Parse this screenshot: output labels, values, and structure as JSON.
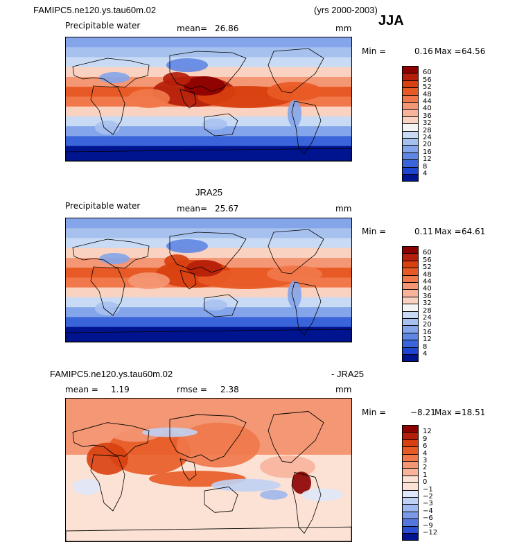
{
  "header": {
    "case_name": "FAMIPC5.ne120.ys.tau60m.02",
    "years": "(yrs 2000-2003)",
    "season": "JJA"
  },
  "panels": [
    {
      "id": "model",
      "title": "",
      "variable": "Precipitable water",
      "mean_label": "mean=",
      "mean_value": "26.86",
      "units": "mm",
      "min_label": "Min =",
      "min_value": "0.16",
      "max_label": "Max =",
      "max_value": "64.56"
    },
    {
      "id": "obs",
      "title": "JRA25",
      "variable": "Precipitable water",
      "mean_label": "mean=",
      "mean_value": "25.67",
      "units": "mm",
      "min_label": "Min =",
      "min_value": "0.11",
      "max_label": "Max =",
      "max_value": "64.61"
    },
    {
      "id": "diff",
      "title_left": "FAMIPC5.ne120.ys.tau60m.02",
      "title_right": "- JRA25",
      "mean_label": "mean =",
      "mean_value": "1.19",
      "rmse_label": "rmse =",
      "rmse_value": "2.38",
      "units": "mm",
      "min_label": "Min =",
      "min_value": "−8.21",
      "max_label": "Max =",
      "max_value": "18.51"
    }
  ],
  "chart_data": [
    {
      "type": "heatmap",
      "title": "FAMIPC5.ne120.ys.tau60m.02 Precipitable water JJA",
      "units": "mm",
      "mean": 26.86,
      "min": 0.16,
      "max": 64.56,
      "colorbar_levels": [
        4,
        8,
        12,
        16,
        20,
        24,
        28,
        32,
        36,
        40,
        44,
        48,
        52,
        56,
        60
      ],
      "colorbar_labels": [
        "60",
        "56",
        "52",
        "48",
        "44",
        "40",
        "36",
        "32",
        "28",
        "24",
        "20",
        "16",
        "12",
        "8",
        "4"
      ],
      "colors_high_to_low": [
        "#8b0000",
        "#b51e0a",
        "#d8400f",
        "#e85a25",
        "#f0784a",
        "#f49774",
        "#f7b49b",
        "#f9d2c1",
        "#f4f4f4",
        "#c9dbf4",
        "#a7c1ef",
        "#84a5ea",
        "#5f86e3",
        "#3a64da",
        "#1e44d2",
        "#00148f"
      ]
    },
    {
      "type": "heatmap",
      "title": "JRA25 Precipitable water",
      "units": "mm",
      "mean": 25.67,
      "min": 0.11,
      "max": 64.61,
      "colorbar_levels": [
        4,
        8,
        12,
        16,
        20,
        24,
        28,
        32,
        36,
        40,
        44,
        48,
        52,
        56,
        60
      ],
      "colorbar_labels": [
        "60",
        "56",
        "52",
        "48",
        "44",
        "40",
        "36",
        "32",
        "28",
        "24",
        "20",
        "16",
        "12",
        "8",
        "4"
      ],
      "colors_high_to_low": [
        "#8b0000",
        "#b51e0a",
        "#d8400f",
        "#e85a25",
        "#f0784a",
        "#f49774",
        "#f7b49b",
        "#f9d2c1",
        "#f4f4f4",
        "#c9dbf4",
        "#a7c1ef",
        "#84a5ea",
        "#5f86e3",
        "#3a64da",
        "#1e44d2",
        "#00148f"
      ]
    },
    {
      "type": "heatmap",
      "title": "FAMIPC5.ne120.ys.tau60m.02 - JRA25",
      "units": "mm",
      "mean": 1.19,
      "rmse": 2.38,
      "min": -8.21,
      "max": 18.51,
      "colorbar_levels": [
        -12,
        -9,
        -6,
        -4,
        -3,
        -2,
        -1,
        0,
        1,
        2,
        3,
        4,
        6,
        9,
        12
      ],
      "colorbar_labels": [
        "12",
        "9",
        "6",
        "4",
        "3",
        "2",
        "1",
        "0",
        "−1",
        "−2",
        "−3",
        "−4",
        "−6",
        "−9",
        "−12"
      ],
      "colors_high_to_low": [
        "#8b0000",
        "#b51e0a",
        "#d8400f",
        "#e85a25",
        "#f0784a",
        "#f49774",
        "#f7b49b",
        "#fbe2d4",
        "#fbe2d4",
        "#dfe8f8",
        "#c0d2f3",
        "#9fb8ee",
        "#7a9ae7",
        "#5477de",
        "#2a4fd5",
        "#00148f"
      ]
    }
  ]
}
